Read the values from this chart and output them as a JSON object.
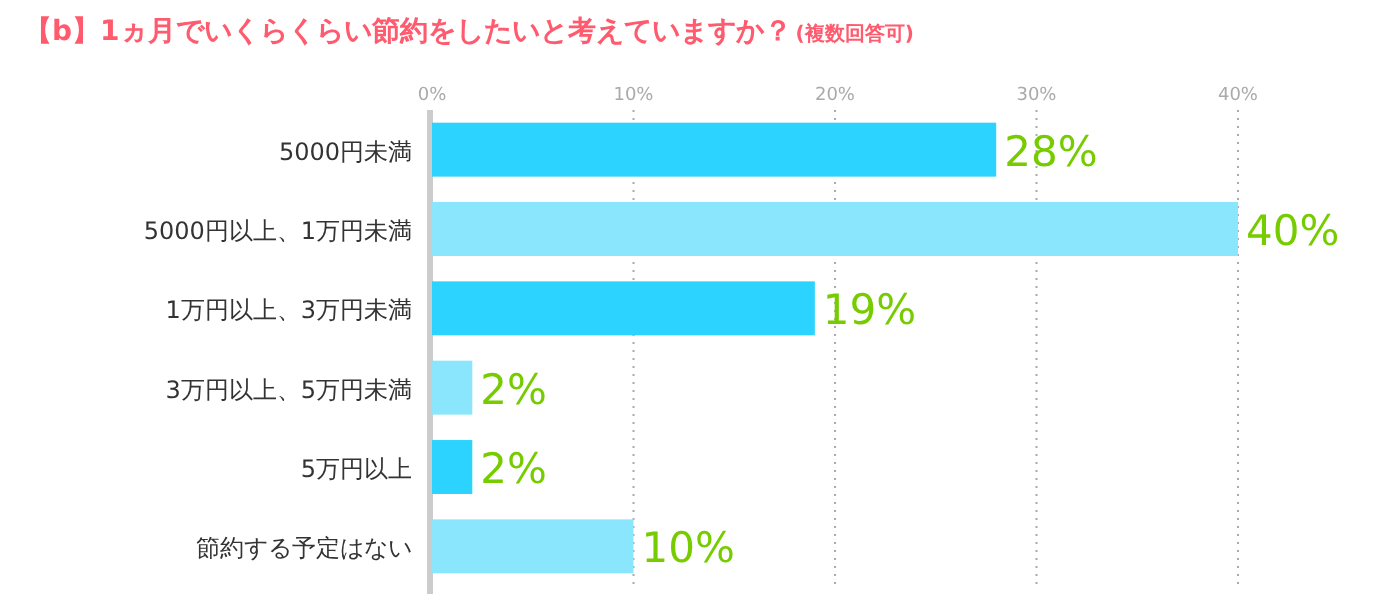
{
  "chart_data": {
    "type": "bar",
    "orientation": "horizontal",
    "title": "【b】1ヵ月でいくらくらい節約をしたいと考えていますか？",
    "subtitle": "(複数回答可)",
    "categories": [
      "5000円未満",
      "5000円以上、1万円未満",
      "1万円以上、3万円未満",
      "3万円以上、5万円未満",
      "5万円以上",
      "節約する予定はない"
    ],
    "values": [
      28,
      40,
      19,
      2,
      2,
      10
    ],
    "colors": [
      "#2dd3ff",
      "#8ae6fc",
      "#2dd3ff",
      "#8ae6fc",
      "#2dd3ff",
      "#8ae6fc"
    ],
    "value_labels": [
      "28%",
      "40%",
      "19%",
      "2%",
      "2%",
      "10%"
    ],
    "xlim": [
      0,
      40
    ],
    "xticks": [
      {
        "value": 0,
        "label": "0%"
      },
      {
        "value": 10,
        "label": "10%"
      },
      {
        "value": 20,
        "label": "20%"
      },
      {
        "value": 30,
        "label": "30%"
      },
      {
        "value": 40,
        "label": "40%"
      }
    ],
    "grid": "x"
  }
}
